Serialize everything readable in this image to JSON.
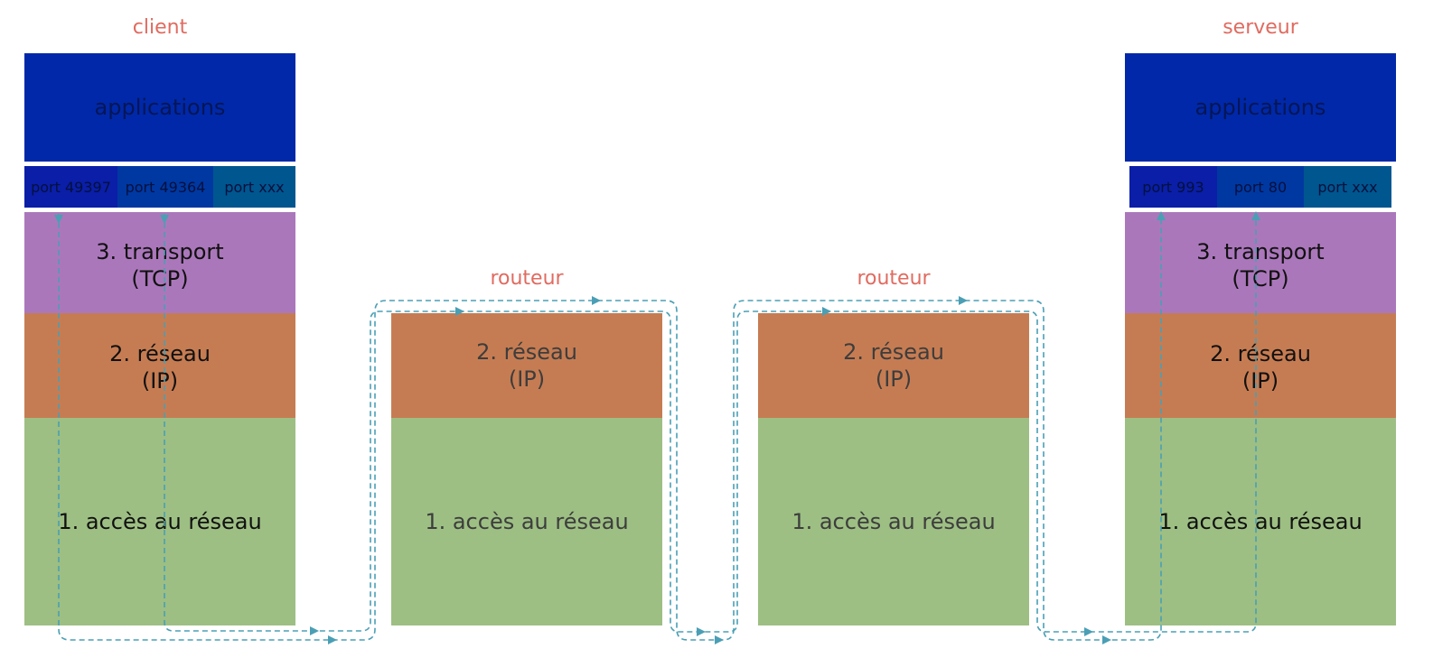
{
  "client": {
    "title": "client",
    "applications": "applications",
    "ports": [
      "port 49397",
      "port 49364",
      "port xxx"
    ],
    "transport": [
      "3. transport",
      "(TCP)"
    ],
    "reseau": [
      "2. réseau",
      "(IP)"
    ],
    "acces": "1. accès au réseau"
  },
  "router1": {
    "title": "routeur",
    "reseau": [
      "2. réseau",
      "(IP)"
    ],
    "acces": "1. accès au réseau"
  },
  "router2": {
    "title": "routeur",
    "reseau": [
      "2. réseau",
      "(IP)"
    ],
    "acces": "1. accès au réseau"
  },
  "server": {
    "title": "serveur",
    "applications": "applications",
    "ports": [
      "port 993",
      "port 80",
      "port xxx"
    ],
    "transport": [
      "3. transport",
      "(TCP)"
    ],
    "reseau": [
      "2. réseau",
      "(IP)"
    ],
    "acces": "1. accès au réseau"
  },
  "colors": {
    "applications": "#0028a8",
    "port_dark": "#0a1ea8",
    "port_mid": "#0038a2",
    "port_light": "#00568f",
    "transport": "#ab77bb",
    "reseau": "#c67c52",
    "acces": "#9dbf83",
    "title": "#e06b60",
    "arrow": "#4a9fb5"
  }
}
